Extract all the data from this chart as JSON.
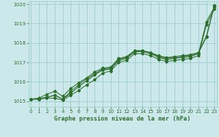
{
  "x": [
    0,
    1,
    2,
    3,
    4,
    5,
    6,
    7,
    8,
    9,
    10,
    11,
    12,
    13,
    14,
    15,
    16,
    17,
    18,
    19,
    20,
    21,
    22,
    23
  ],
  "line1": [
    1015.1,
    1015.1,
    1015.2,
    1015.3,
    1015.1,
    1015.4,
    1015.75,
    1016.05,
    1016.35,
    1016.6,
    1016.65,
    1017.1,
    1017.2,
    1017.55,
    1017.55,
    1017.45,
    1017.25,
    1017.15,
    1017.2,
    1017.25,
    1017.3,
    1017.45,
    1019.1,
    1019.85
  ],
  "line2": [
    1015.1,
    1015.1,
    1015.2,
    1015.3,
    1015.1,
    1015.5,
    1015.85,
    1016.15,
    1016.4,
    1016.65,
    1016.7,
    1017.15,
    1017.25,
    1017.6,
    1017.6,
    1017.5,
    1017.3,
    1017.2,
    1017.25,
    1017.3,
    1017.35,
    1017.5,
    1018.3,
    1019.95
  ],
  "line3": [
    1015.1,
    1015.15,
    1015.35,
    1015.5,
    1015.25,
    1015.65,
    1015.95,
    1016.2,
    1016.5,
    1016.7,
    1016.75,
    1017.2,
    1017.3,
    1017.6,
    1017.6,
    1017.5,
    1017.35,
    1017.25,
    1017.3,
    1017.35,
    1017.4,
    1017.5,
    1018.35,
    1019.95
  ],
  "line4": [
    1015.1,
    1015.1,
    1015.15,
    1015.15,
    1015.05,
    1015.3,
    1015.55,
    1015.85,
    1016.1,
    1016.45,
    1016.55,
    1017.0,
    1017.1,
    1017.45,
    1017.45,
    1017.35,
    1017.15,
    1017.05,
    1017.1,
    1017.15,
    1017.2,
    1017.35,
    1018.95,
    1019.75
  ],
  "bg_color": "#cce8ea",
  "grid_color": "#99cccc",
  "line_color": "#2d6e2d",
  "xlabel": "Graphe pression niveau de la mer (hPa)",
  "ylim_min": 1014.7,
  "ylim_max": 1020.15,
  "yticks": [
    1015,
    1016,
    1017,
    1018,
    1019,
    1020
  ],
  "xticks": [
    0,
    1,
    2,
    3,
    4,
    5,
    6,
    7,
    8,
    9,
    10,
    11,
    12,
    13,
    14,
    15,
    16,
    17,
    18,
    19,
    20,
    21,
    22,
    23
  ]
}
